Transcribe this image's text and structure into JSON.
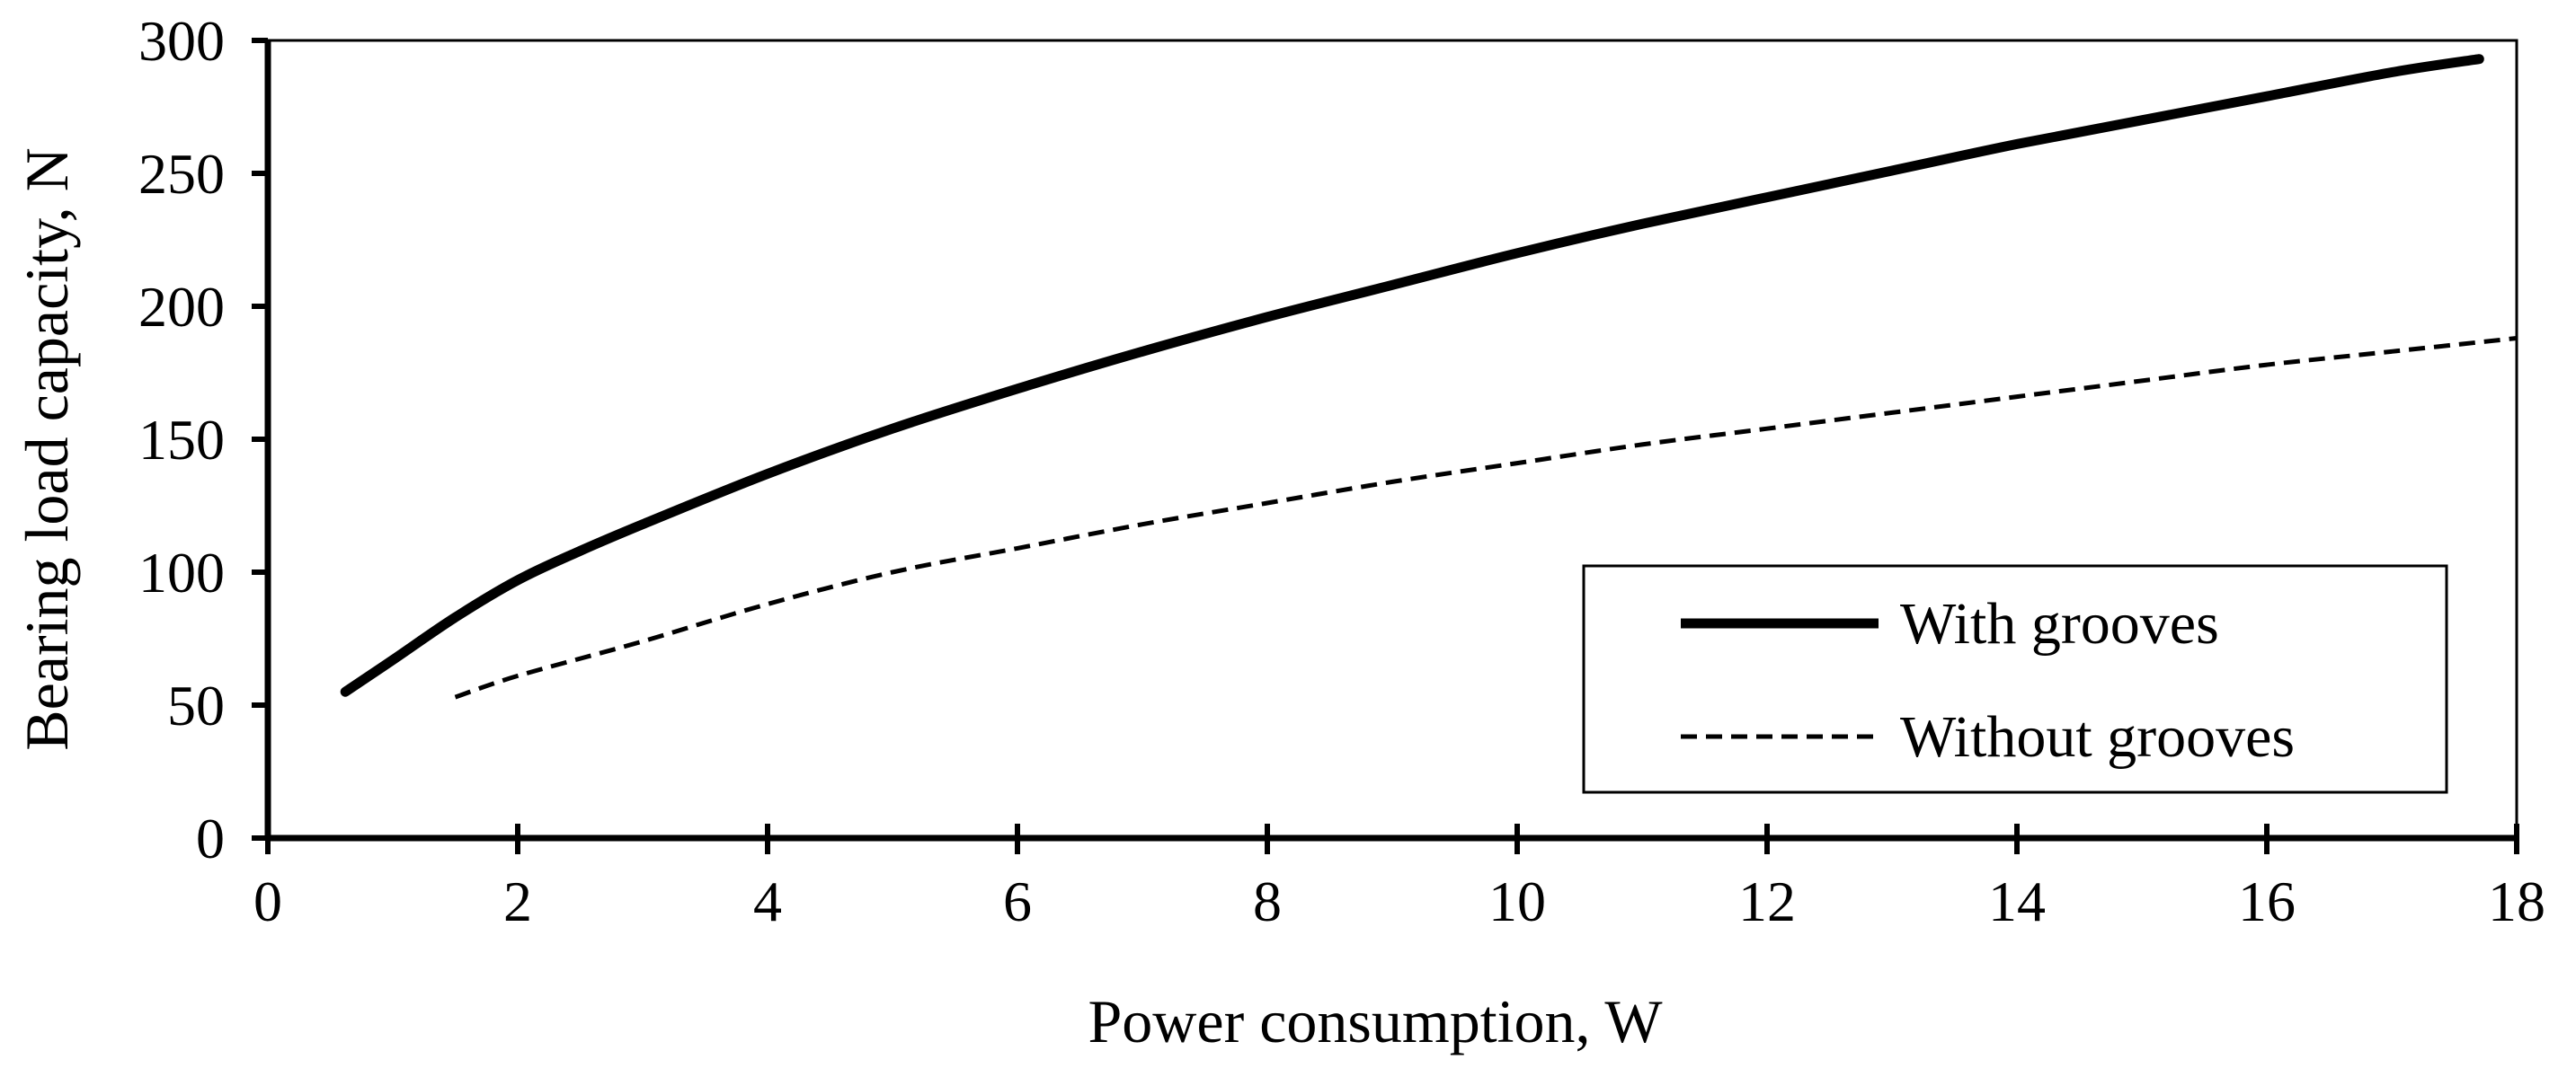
{
  "chart_data": {
    "type": "line",
    "title": "",
    "xlabel": "Power consumption, W",
    "ylabel": "Bearing load capacity, N",
    "xlim": [
      0,
      18
    ],
    "ylim": [
      0,
      300
    ],
    "xticks": [
      0,
      2,
      4,
      6,
      8,
      10,
      12,
      14,
      16,
      18
    ],
    "yticks": [
      0,
      50,
      100,
      150,
      200,
      250,
      300
    ],
    "x_tick_labels": [
      "0",
      "2",
      "4",
      "6",
      "8",
      "10",
      "12",
      "14",
      "16",
      "18"
    ],
    "y_tick_labels": [
      "0",
      "50",
      "100",
      "150",
      "200",
      "250",
      "300"
    ],
    "grid": false,
    "legend_position": "bottom-right",
    "series": [
      {
        "name": "With grooves",
        "style": "solid",
        "color": "#000000",
        "x": [
          0.62,
          1.0,
          1.5,
          2.0,
          2.5,
          3.0,
          4.0,
          5.0,
          6.0,
          7.0,
          8.0,
          9.0,
          10.0,
          11.0,
          12.0,
          13.0,
          14.0,
          15.0,
          16.0,
          17.0,
          17.7
        ],
        "y": [
          55,
          67,
          83,
          97,
          108,
          118,
          137,
          154,
          169,
          183,
          196,
          208,
          220,
          231,
          241,
          251,
          261,
          270,
          279,
          288,
          293
        ]
      },
      {
        "name": "Without grooves",
        "style": "dashed",
        "color": "#000000",
        "x": [
          1.5,
          2.0,
          3.0,
          4.0,
          5.0,
          6.0,
          7.0,
          8.0,
          9.0,
          10.0,
          11.0,
          12.0,
          13.0,
          14.0,
          15.0,
          16.0,
          17.0,
          18.0
        ],
        "y": [
          53,
          61,
          74,
          88,
          100,
          109,
          118,
          126,
          134,
          141,
          148,
          154,
          160,
          166,
          172,
          178,
          183,
          188
        ]
      }
    ]
  }
}
